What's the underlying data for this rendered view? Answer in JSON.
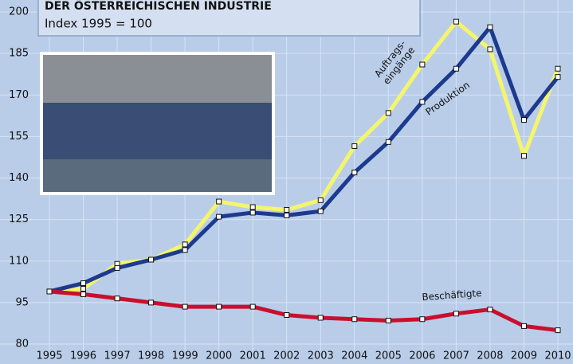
{
  "chart_data": {
    "type": "line",
    "title": "DER ÖSTERREICHISCHEN INDUSTRIE",
    "subtitle": "Index 1995 = 100",
    "x": [
      1995,
      1996,
      1997,
      1998,
      1999,
      2000,
      2001,
      2002,
      2003,
      2004,
      2005,
      2006,
      2007,
      2008,
      2009,
      2010
    ],
    "xlim": [
      1995,
      2010
    ],
    "ylim": [
      80,
      200
    ],
    "yticks": [
      80,
      95,
      110,
      125,
      140,
      155,
      170,
      185,
      200
    ],
    "grid": true,
    "series": [
      {
        "name": "Auftrags- eingänge",
        "color": "#f4f56c",
        "values": [
          99,
          100,
          109,
          110.5,
          116,
          131.5,
          129.5,
          128.5,
          132,
          151.5,
          163.5,
          181,
          196.5,
          186.5,
          148,
          179.5
        ]
      },
      {
        "name": "Produktion",
        "color": "#1c3a8e",
        "values": [
          99,
          102,
          107.5,
          110.5,
          114,
          126,
          127.5,
          126.5,
          128,
          142,
          153,
          167.5,
          179.5,
          194.5,
          161,
          176.5
        ]
      },
      {
        "name": "Beschäftigte",
        "color": "#c8102e",
        "values": [
          99,
          98,
          96.5,
          95,
          93.5,
          93.5,
          93.5,
          90.5,
          89.5,
          89,
          88.5,
          89,
          91,
          92.5,
          86.5,
          85
        ]
      }
    ]
  }
}
